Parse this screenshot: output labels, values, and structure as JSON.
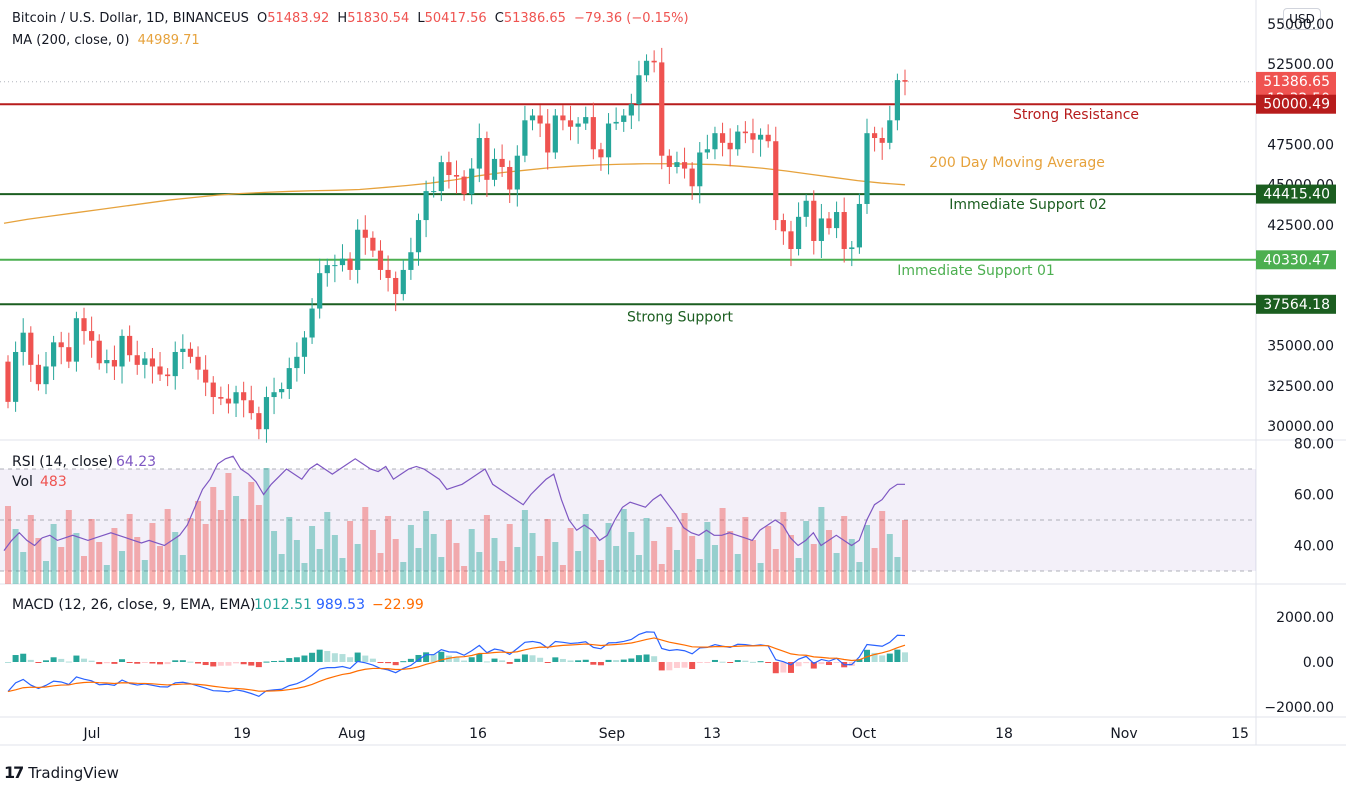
{
  "header": {
    "symbol": "Bitcoin / U.S. Dollar, 1D, BINANCEUS",
    "o_label": "O",
    "o_value": "51483.92",
    "h_label": "H",
    "h_value": "51830.54",
    "l_label": "L",
    "l_value": "50417.56",
    "c_label": "C",
    "c_value": "51386.65",
    "change": "−79.36 (−0.15%)",
    "ma_label": "MA (200, close, 0)",
    "ma_value": "44989.71"
  },
  "currency_button": "USD",
  "colors": {
    "up": "#26a69a",
    "down": "#ef5350",
    "resistance": "#b71c1c",
    "support_dark": "#1b5e20",
    "support_light": "#4caf50",
    "ma": "#e6a23c",
    "rsi": "#7e57c2",
    "macd": "#2962ff",
    "signal": "#ff6d00"
  },
  "chart_data": [
    {
      "type": "candlestick",
      "title": "Bitcoin / U.S. Dollar, 1D, BINANCEUS",
      "x_ticks": [
        "Jul",
        "19",
        "Aug",
        "16",
        "Sep",
        "13",
        "Oct",
        "18",
        "Nov",
        "15"
      ],
      "y_ticks": [
        "55000.00",
        "52500.00",
        "47500.00",
        "45000.00",
        "42500.00",
        "35000.00",
        "32500.00",
        "30000.00"
      ],
      "ylim": [
        28000,
        56000
      ],
      "closes": [
        31500,
        34600,
        35800,
        33800,
        32600,
        33700,
        35200,
        34900,
        34000,
        36700,
        35900,
        35300,
        33900,
        34100,
        33700,
        35600,
        34400,
        33800,
        34200,
        33700,
        33200,
        33100,
        34600,
        34800,
        34300,
        33500,
        32700,
        31800,
        31700,
        31400,
        32100,
        31600,
        30800,
        29800,
        31800,
        32100,
        32300,
        33600,
        34300,
        35500,
        37300,
        39500,
        40000,
        40000,
        40400,
        39700,
        42200,
        41700,
        40900,
        39700,
        39200,
        38200,
        39700,
        40800,
        42800,
        44600,
        44600,
        46400,
        45600,
        45500,
        44400,
        46000,
        47900,
        45300,
        46600,
        46100,
        44700,
        46800,
        49000,
        49300,
        48800,
        47000,
        49300,
        49000,
        48600,
        48800,
        49200,
        47200,
        46700,
        48800,
        48900,
        49300,
        50000,
        51800,
        52700,
        52600,
        46800,
        46100,
        46400,
        46000,
        44900,
        47000,
        47200,
        48200,
        47600,
        47200,
        48300,
        48200,
        47800,
        48100,
        47700,
        42800,
        42100,
        41000,
        43000,
        44000,
        41500,
        42900,
        42300,
        43300,
        41000,
        41100,
        43800,
        48200,
        47900,
        47600,
        49000,
        51500,
        51400
      ],
      "ma200": [
        42600,
        42850,
        43050,
        43250,
        43450,
        43650,
        43850,
        44050,
        44200,
        44350,
        44450,
        44520,
        44580,
        44620,
        44650,
        44700,
        44820,
        44950,
        45100,
        45300,
        45550,
        45750,
        45900,
        46050,
        46150,
        46220,
        46270,
        46300,
        46300,
        46280,
        46250,
        46150,
        46020,
        45850,
        45650,
        45450,
        45250,
        45100,
        44990
      ],
      "rsi": [
        38,
        42,
        45,
        42,
        40,
        43,
        44,
        42,
        43,
        44,
        43,
        42,
        43,
        44,
        45,
        44,
        43,
        42,
        41,
        42,
        41,
        40,
        42,
        44,
        48,
        55,
        62,
        66,
        72,
        74,
        75,
        70,
        68,
        65,
        60,
        64,
        67,
        70,
        68,
        66,
        70,
        72,
        70,
        68,
        70,
        72,
        74,
        72,
        70,
        69,
        71,
        66,
        68,
        70,
        71,
        70,
        68,
        66,
        62,
        63,
        64,
        66,
        68,
        70,
        64,
        62,
        60,
        58,
        56,
        60,
        63,
        66,
        68,
        58,
        50,
        46,
        48,
        46,
        42,
        44,
        50,
        55,
        57,
        56,
        55,
        58,
        60,
        56,
        52,
        47,
        45,
        44,
        46,
        44,
        44,
        45,
        44,
        43,
        42,
        46,
        48,
        50,
        48,
        43,
        40,
        42,
        45,
        40,
        42,
        44,
        42,
        40,
        42,
        50,
        56,
        58,
        62,
        64,
        64
      ],
      "rsi_label": "RSI (14, close)",
      "rsi_value": "64.23",
      "rsi_ticks": [
        "80.00",
        "60.00",
        "40.00"
      ],
      "vol_label": "Vol",
      "vol_value": "483",
      "macd_label": "MACD (12, 26, close, 9, EMA, EMA)",
      "macd_values": [
        "1012.51",
        "989.53",
        "−22.99"
      ],
      "macd_ticks": [
        "2000.00",
        "0.00",
        "−2000.00"
      ],
      "price_tags": [
        {
          "label": "51386.65",
          "sub": "12:32:50",
          "value": 51386.65
        },
        {
          "label": "50000.49",
          "value": 50000.49
        },
        {
          "label": "44415.40",
          "value": 44415.4
        },
        {
          "label": "40330.47",
          "value": 40330.47
        },
        {
          "label": "37564.18",
          "value": 37564.18
        }
      ],
      "levels": [
        {
          "name": "Strong Resistance",
          "value": 50000.49,
          "color": "#b71c1c"
        },
        {
          "name": "Immediate Support 02",
          "value": 44415.4,
          "color": "#1b5e20"
        },
        {
          "name": "Immediate Support 01",
          "value": 40330.47,
          "color": "#4caf50"
        },
        {
          "name": "Strong Support",
          "value": 37564.18,
          "color": "#1b5e20"
        }
      ],
      "ma_annotation": "200 Day Moving Average"
    }
  ],
  "brand": "TradingView"
}
